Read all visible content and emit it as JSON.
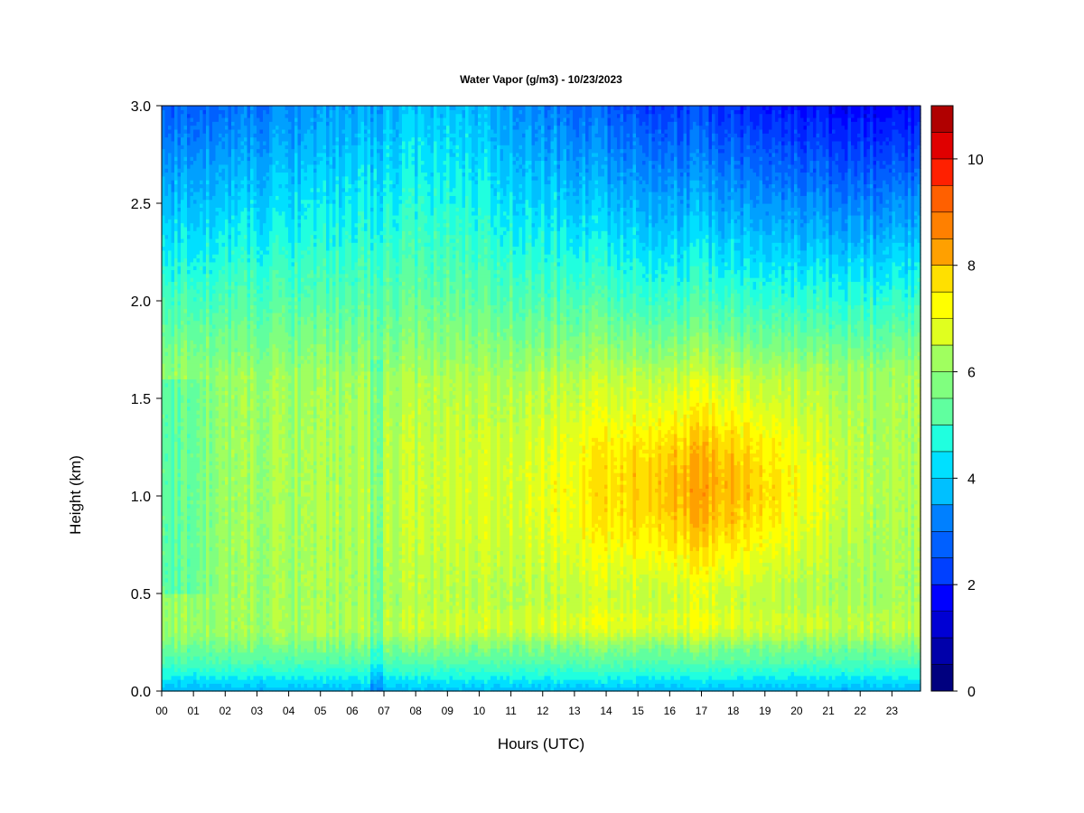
{
  "chart_data": {
    "type": "heatmap",
    "title": "Water Vapor (g/m3) - 10/23/2023",
    "xlabel": "Hours (UTC)",
    "ylabel": "Height (km)",
    "xlim": [
      0,
      23.9
    ],
    "ylim": [
      0,
      3.0
    ],
    "x_ticks": [
      "00",
      "01",
      "02",
      "03",
      "04",
      "05",
      "06",
      "07",
      "08",
      "09",
      "10",
      "11",
      "12",
      "13",
      "14",
      "15",
      "16",
      "17",
      "18",
      "19",
      "20",
      "21",
      "22",
      "23"
    ],
    "y_ticks": [
      "0.0",
      "0.5",
      "1.0",
      "1.5",
      "2.0",
      "2.5",
      "3.0"
    ],
    "colorbar": {
      "min": 0,
      "max": 11,
      "step": 0.5,
      "ticks": [
        "0",
        "2",
        "4",
        "6",
        "8",
        "10"
      ],
      "colors": [
        "#00007f",
        "#0000aa",
        "#0000d4",
        "#0000ff",
        "#0020ff",
        "#0040ff",
        "#0060ff",
        "#0080ff",
        "#00a0ff",
        "#00c0ff",
        "#00e0ff",
        "#20ffdf",
        "#40ffbf",
        "#60ff9f",
        "#80ff7f",
        "#a0ff5f",
        "#c0ff3f",
        "#e0ff1f",
        "#ffff00",
        "#ffe000",
        "#ffc000",
        "#ffa000",
        "#ff8000",
        "#ff6000",
        "#ff4000",
        "#ff2000",
        "#e00000",
        "#b00000",
        "#800000"
      ]
    },
    "hours": [
      0,
      1,
      2,
      3,
      4,
      5,
      6,
      7,
      8,
      9,
      10,
      11,
      12,
      13,
      14,
      15,
      16,
      17,
      18,
      19,
      20,
      21,
      22,
      23
    ],
    "heights_km": [
      0.0,
      0.1,
      0.2,
      0.3,
      0.4,
      0.5,
      0.6,
      0.7,
      0.8,
      0.9,
      1.0,
      1.1,
      1.2,
      1.3,
      1.4,
      1.5,
      1.6,
      1.7,
      1.8,
      1.9,
      2.0,
      2.1,
      2.2,
      2.3,
      2.4,
      2.5,
      2.6,
      2.7,
      2.8,
      2.9,
      3.0
    ]
  }
}
